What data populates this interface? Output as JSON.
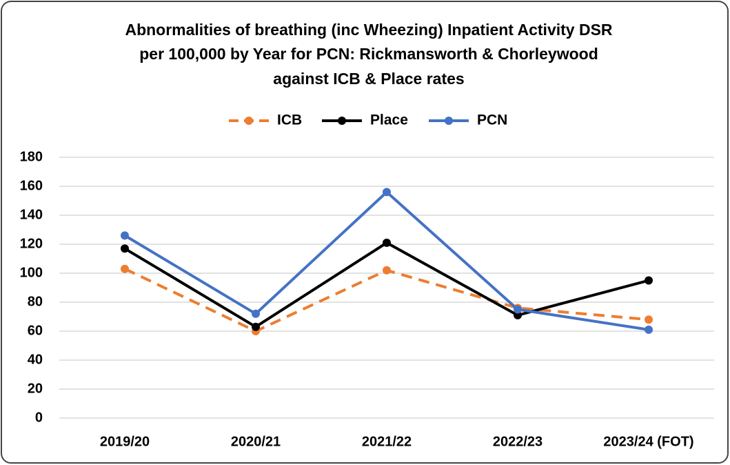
{
  "chart_data": {
    "type": "line",
    "title": [
      "Abnormalities of breathing (inc Wheezing)  Inpatient Activity DSR",
      "per 100,000 by Year for PCN: Rickmansworth & Chorleywood",
      "against ICB & Place rates"
    ],
    "categories": [
      "2019/20",
      "2020/21",
      "2021/22",
      "2022/23",
      "2023/24 (FOT)"
    ],
    "series": [
      {
        "name": "ICB",
        "color": "#ed7d31",
        "dashed": true,
        "values": [
          103,
          60,
          102,
          76,
          68
        ]
      },
      {
        "name": "Place",
        "color": "#000000",
        "dashed": false,
        "values": [
          117,
          63,
          121,
          71,
          95
        ]
      },
      {
        "name": "PCN",
        "color": "#4472c4",
        "dashed": false,
        "values": [
          126,
          72,
          156,
          75,
          61
        ]
      }
    ],
    "ylim": [
      0,
      180
    ],
    "yticks": [
      0,
      20,
      40,
      60,
      80,
      100,
      120,
      140,
      160,
      180
    ],
    "grid": true,
    "legend": "top"
  }
}
